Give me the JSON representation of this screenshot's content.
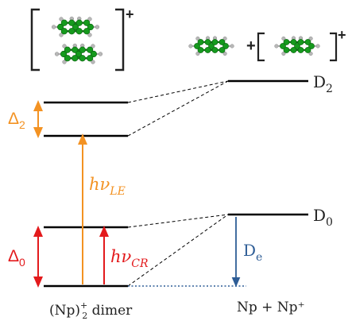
{
  "labels": {
    "d2": {
      "main": "D",
      "sub": "2"
    },
    "d0": {
      "main": "D",
      "sub": "0"
    },
    "delta2": {
      "main": "Δ",
      "sub": "2"
    },
    "delta0": {
      "main": "Δ",
      "sub": "0"
    },
    "hv_le": {
      "main": "hν",
      "sub": "LE"
    },
    "hv_cr": {
      "main": "hν",
      "sub": "CR"
    },
    "de": {
      "main": "D",
      "sub": "e"
    },
    "plus_charge": "+",
    "plus_between": "+"
  },
  "captions": {
    "left": {
      "pre": "(Np)",
      "sup": "+",
      "sub": "2",
      "post": " dimer"
    },
    "right": "Np  +  Np⁺"
  },
  "colors": {
    "level": "#000000",
    "delta2": "#f39222",
    "hv_le": "#f39222",
    "delta0": "#e31a1c",
    "hv_cr": "#e31a1c",
    "de": "#2e5d96",
    "carbon": "#159a1d",
    "hydrogen": "#b8b8b8"
  }
}
